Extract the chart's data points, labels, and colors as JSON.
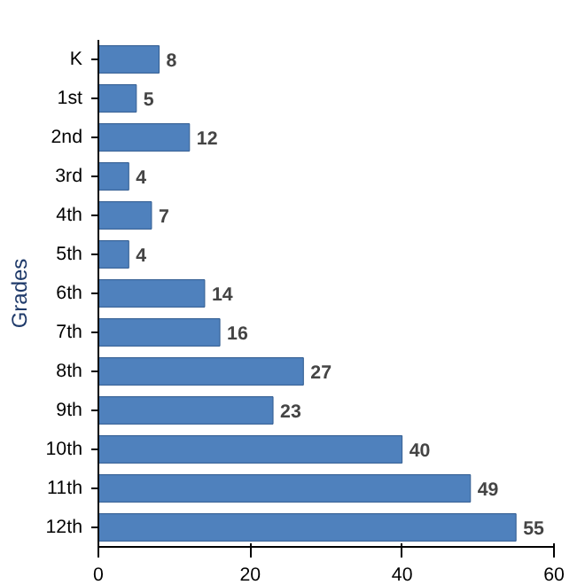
{
  "chart_data": {
    "type": "bar",
    "orientation": "horizontal",
    "ylabel": "Grades",
    "categories": [
      "K",
      "1st",
      "2nd",
      "3rd",
      "4th",
      "5th",
      "6th",
      "7th",
      "8th",
      "9th",
      "10th",
      "11th",
      "12th"
    ],
    "values": [
      8,
      5,
      12,
      4,
      7,
      4,
      14,
      16,
      27,
      23,
      40,
      49,
      55
    ],
    "color": "#4f81bd",
    "xlim": [
      0,
      60
    ],
    "xticks": [
      0,
      20,
      40,
      60
    ],
    "grid": false,
    "data_labels": true
  }
}
